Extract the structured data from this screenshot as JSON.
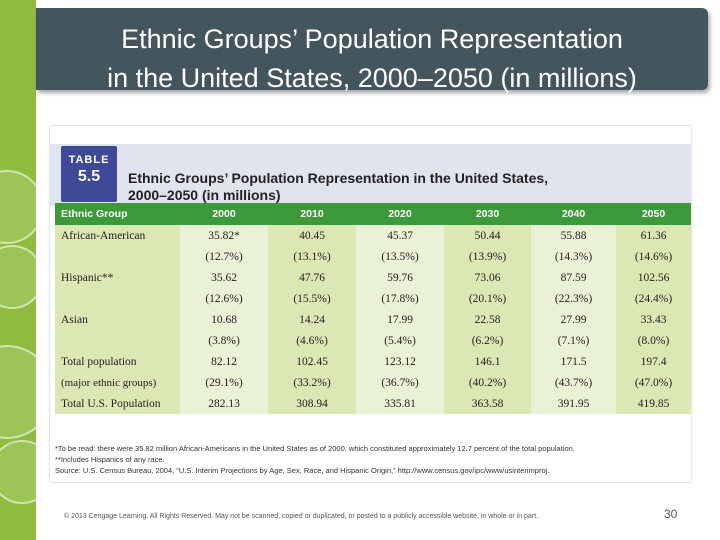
{
  "slide": {
    "title_line1": "Ethnic Groups’ Population Representation",
    "title_line2": "in the United States, 2000–2050 (in millions)",
    "copyright": "© 2013 Cengage Learning. All Rights Reserved. May not be scanned, copied or duplicated, or posted to a publicly accessible website, in whole or in part.",
    "page_number": "30"
  },
  "table": {
    "badge_label": "TABLE",
    "badge_number": "5.5",
    "caption_line1": "Ethnic Groups’ Population Representation in the United States,",
    "caption_line2": "2000–2050 (in millions)",
    "headers": [
      "Ethnic Group",
      "2000",
      "2010",
      "2020",
      "2030",
      "2040",
      "2050"
    ],
    "rows": [
      {
        "label": "African-American",
        "values": [
          "35.82*",
          "40.45",
          "45.37",
          "50.44",
          "55.88",
          "61.36"
        ],
        "percents": [
          "(12.7%)",
          "(13.1%)",
          "(13.5%)",
          "(13.9%)",
          "(14.3%)",
          "(14.6%)"
        ]
      },
      {
        "label": "Hispanic**",
        "values": [
          "35.62",
          "47.76",
          "59.76",
          "73.06",
          "87.59",
          "102.56"
        ],
        "percents": [
          "(12.6%)",
          "(15.5%)",
          "(17.8%)",
          "(20.1%)",
          "(22.3%)",
          "(24.4%)"
        ]
      },
      {
        "label": "Asian",
        "values": [
          "10.68",
          "14.24",
          "17.99",
          "22.58",
          "27.99",
          "33.43"
        ],
        "percents": [
          "(3.8%)",
          "(4.6%)",
          "(5.4%)",
          "(6.2%)",
          "(7.1%)",
          "(8.0%)"
        ]
      },
      {
        "label": "Total population",
        "label2": "(major ethnic groups)",
        "values": [
          "82.12",
          "102.45",
          "123.12",
          "146.1",
          "171.5",
          "197.4"
        ],
        "percents": [
          "(29.1%)",
          "(33.2%)",
          "(36.7%)",
          "(40.2%)",
          "(43.7%)",
          "(47.0%)"
        ]
      }
    ],
    "total": {
      "label": "Total U.S. Population",
      "values": [
        "282.13",
        "308.94",
        "335.81",
        "363.58",
        "391.95",
        "419.85"
      ]
    },
    "footnote1": "*To be read: there were 35.82 million African-Americans in the United States as of 2000, which constituted approximately 12.7 percent of the total population.",
    "footnote2": "**Includes Hispanics of any race.",
    "source": "Source: U.S. Census Bureau, 2004, “U.S. Interim Projections by Age, Sex, Race, and Hispanic Origin,” http://www.census.gov/ipc/www/usinterimproj."
  }
}
